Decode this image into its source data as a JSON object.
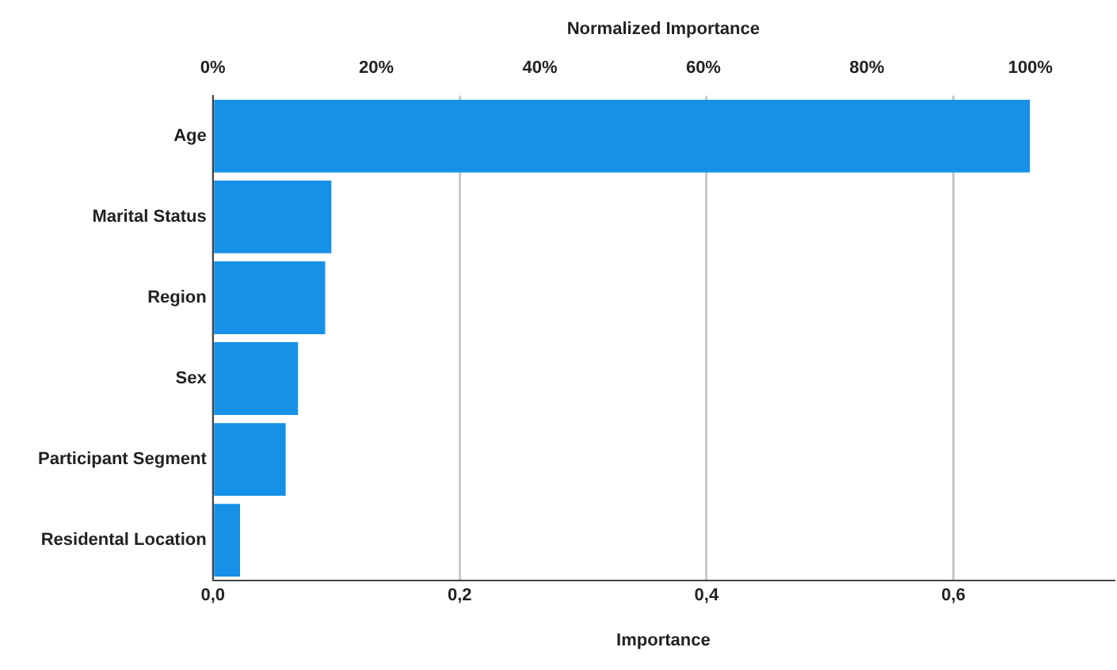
{
  "chart_data": {
    "type": "bar",
    "orientation": "horizontal",
    "categories": [
      "Age",
      "Marital Status",
      "Region",
      "Sex",
      "Participant Segment",
      "Residental Location"
    ],
    "values": [
      0.662,
      0.096,
      0.091,
      0.069,
      0.059,
      0.022
    ],
    "color": "#1591e8",
    "xlabel": "Importance",
    "x2label": "Normalized Importance",
    "xlim": [
      0,
      0.73
    ],
    "xticks": [
      {
        "value": 0,
        "label": "0,0"
      },
      {
        "value": 0.2,
        "label": "0,2"
      },
      {
        "value": 0.4,
        "label": "0,4"
      },
      {
        "value": 0.6,
        "label": "0,6"
      }
    ],
    "x2lim": [
      0,
      110.2
    ],
    "x2ticks": [
      {
        "value": 0,
        "label": "0%"
      },
      {
        "value": 20,
        "label": "20%"
      },
      {
        "value": 40,
        "label": "40%"
      },
      {
        "value": 60,
        "label": "60%"
      },
      {
        "value": 80,
        "label": "80%"
      },
      {
        "value": 100,
        "label": "100%"
      }
    ],
    "grid": "x",
    "legend": false
  }
}
